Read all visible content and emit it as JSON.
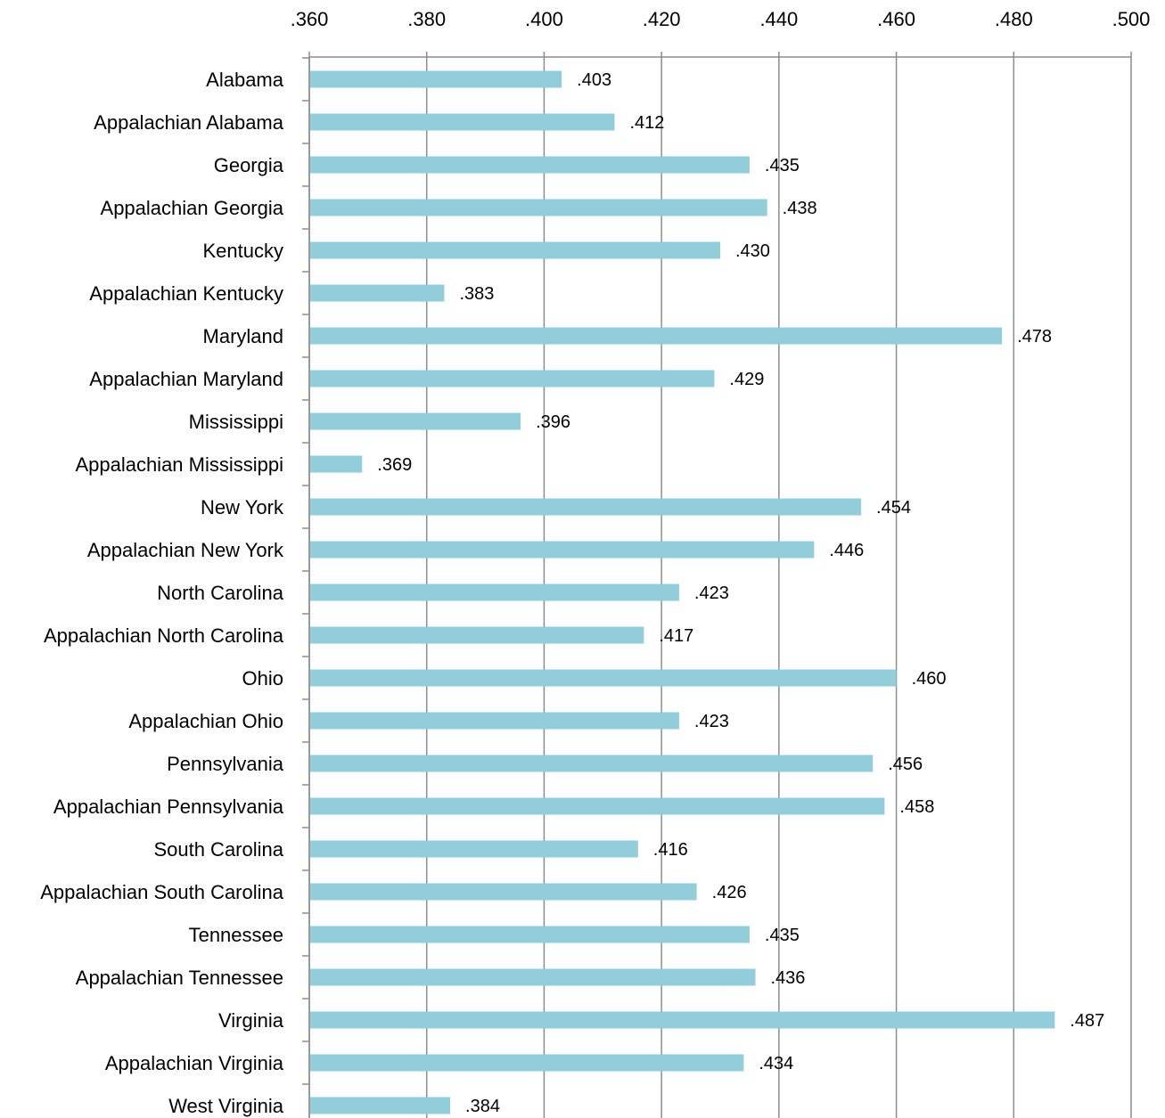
{
  "chart_data": {
    "type": "bar",
    "orientation": "horizontal",
    "title": "",
    "xlabel": "",
    "ylabel": "",
    "xlim": [
      0.36,
      0.5
    ],
    "x_ticks": [
      ".360",
      ".380",
      ".400",
      ".420",
      ".440",
      ".460",
      ".480",
      ".500"
    ],
    "x_axis_position": "top",
    "grid": true,
    "legend": "none",
    "bar_color": "#92CDDC",
    "categories": [
      "Alabama",
      "Appalachian Alabama",
      "Georgia",
      "Appalachian Georgia",
      "Kentucky",
      "Appalachian Kentucky",
      "Maryland",
      "Appalachian Maryland",
      "Mississippi",
      "Appalachian Mississippi",
      "New York",
      "Appalachian New York",
      "North Carolina",
      "Appalachian North Carolina",
      "Ohio",
      "Appalachian Ohio",
      "Pennsylvania",
      "Appalachian Pennsylvania",
      "South Carolina",
      "Appalachian South Carolina",
      "Tennessee",
      "Appalachian Tennessee",
      "Virginia",
      "Appalachian Virginia",
      "West Virginia"
    ],
    "values": [
      0.403,
      0.412,
      0.435,
      0.438,
      0.43,
      0.383,
      0.478,
      0.429,
      0.396,
      0.369,
      0.454,
      0.446,
      0.423,
      0.417,
      0.46,
      0.423,
      0.456,
      0.458,
      0.416,
      0.426,
      0.435,
      0.436,
      0.487,
      0.434,
      0.384
    ],
    "data_labels": [
      ".403",
      ".412",
      ".435",
      ".438",
      ".430",
      ".383",
      ".478",
      ".429",
      ".396",
      ".369",
      ".454",
      ".446",
      ".423",
      ".417",
      ".460",
      ".423",
      ".456",
      ".458",
      ".416",
      ".426",
      ".435",
      ".436",
      ".487",
      ".434",
      ".384"
    ]
  }
}
